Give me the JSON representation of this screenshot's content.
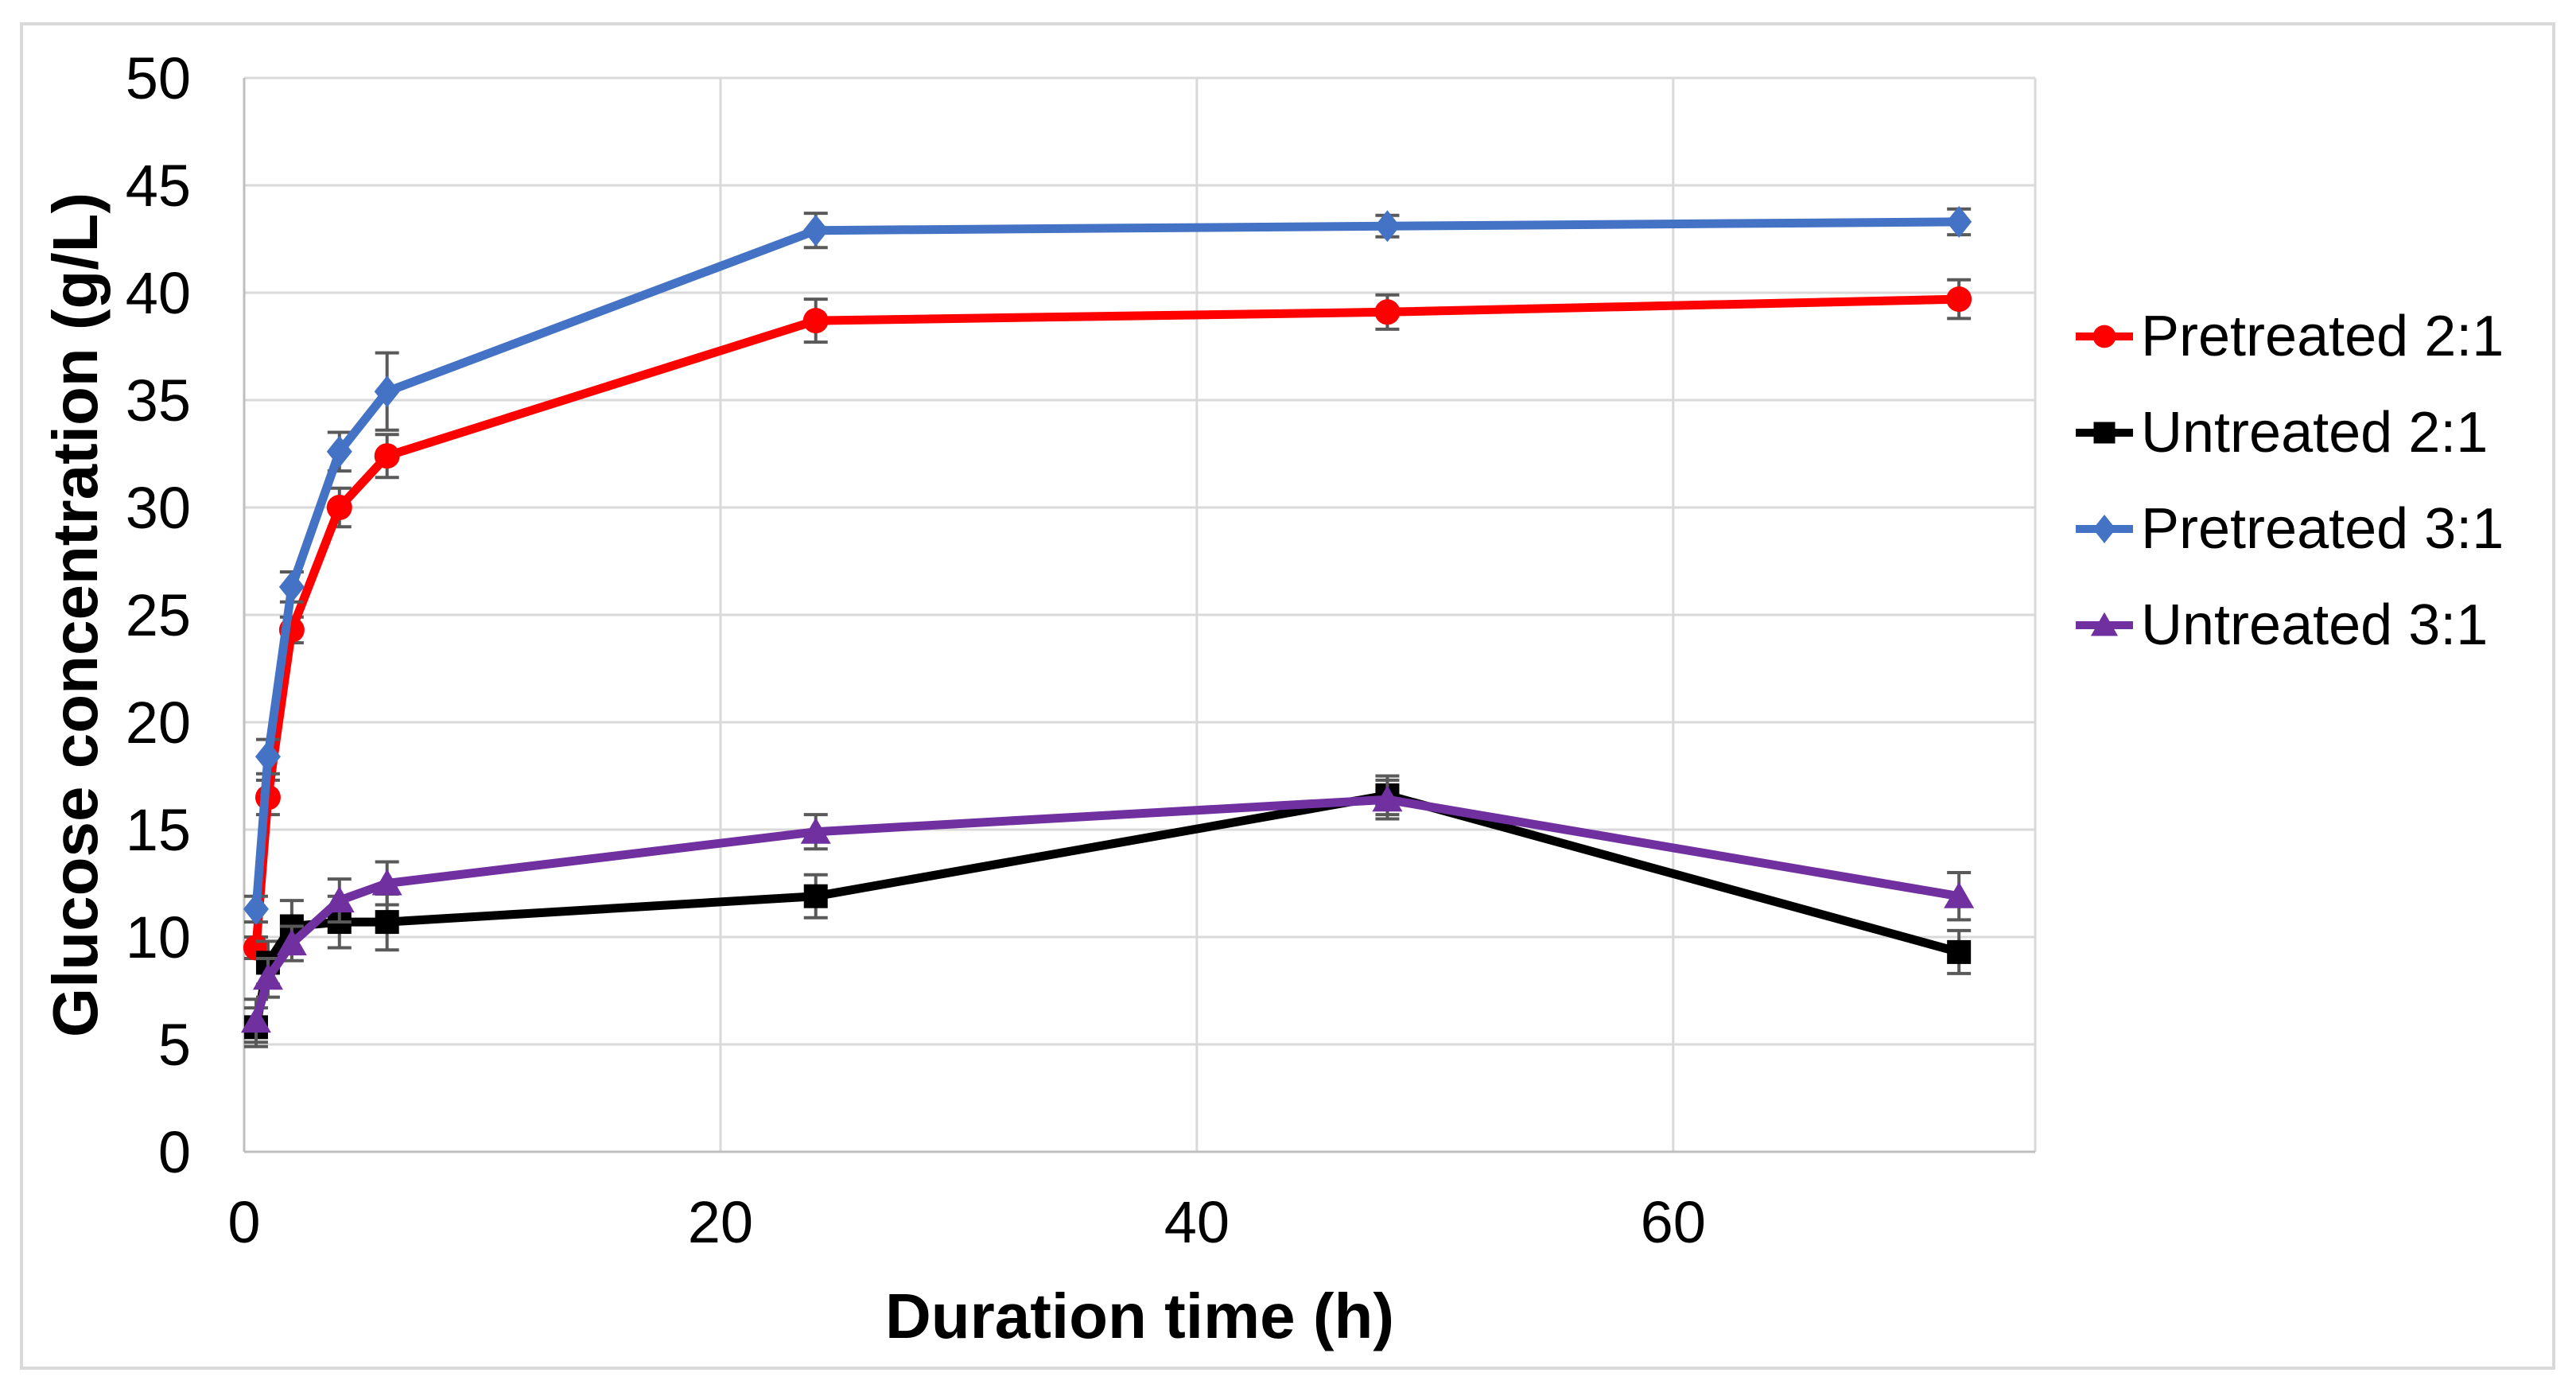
{
  "chart_data": {
    "type": "line",
    "title": "",
    "xlabel": "Duration time (h)",
    "ylabel": "Glucose concentration (g/L)",
    "xlim": [
      0,
      75.2
    ],
    "ylim": [
      0,
      50
    ],
    "x_ticks": [
      0,
      20,
      40,
      60
    ],
    "y_ticks": [
      0,
      5,
      10,
      15,
      20,
      25,
      30,
      35,
      40,
      45,
      50
    ],
    "grid": "both",
    "legend_position": "right",
    "x": [
      0.5,
      1,
      2,
      4,
      6,
      24,
      48,
      72
    ],
    "series": [
      {
        "name": "Pretreated 2:1",
        "color": "#FF0000",
        "marker": "circle",
        "values": [
          9.5,
          16.5,
          24.3,
          30.0,
          32.4,
          38.7,
          39.1,
          39.7
        ],
        "error": [
          0.5,
          0.8,
          0.6,
          0.9,
          1.0,
          1.0,
          0.8,
          0.9
        ]
      },
      {
        "name": "Untreated 2:1",
        "color": "#000000",
        "marker": "square",
        "values": [
          5.8,
          8.8,
          10.5,
          10.7,
          10.7,
          11.9,
          16.6,
          9.3
        ],
        "error": [
          0.9,
          1.0,
          1.2,
          1.2,
          1.3,
          1.0,
          0.9,
          1.0
        ]
      },
      {
        "name": "Pretreated 3:1",
        "color": "#4472C4",
        "marker": "diamond",
        "values": [
          11.3,
          18.4,
          26.3,
          32.6,
          35.4,
          42.9,
          43.1,
          43.3
        ],
        "error": [
          0.6,
          0.8,
          0.7,
          0.9,
          1.8,
          0.8,
          0.5,
          0.6
        ]
      },
      {
        "name": "Untreated 3:1",
        "color": "#7030A0",
        "marker": "triangle",
        "values": [
          6.1,
          8.1,
          9.7,
          11.7,
          12.5,
          14.9,
          16.4,
          11.9
        ],
        "error": [
          1.0,
          0.9,
          0.8,
          1.0,
          1.0,
          0.8,
          0.9,
          1.1
        ]
      }
    ],
    "error_bar_color": "#595959",
    "gridline_color": "#D9D9D9",
    "axis_line_color": "#BFBFBF"
  }
}
